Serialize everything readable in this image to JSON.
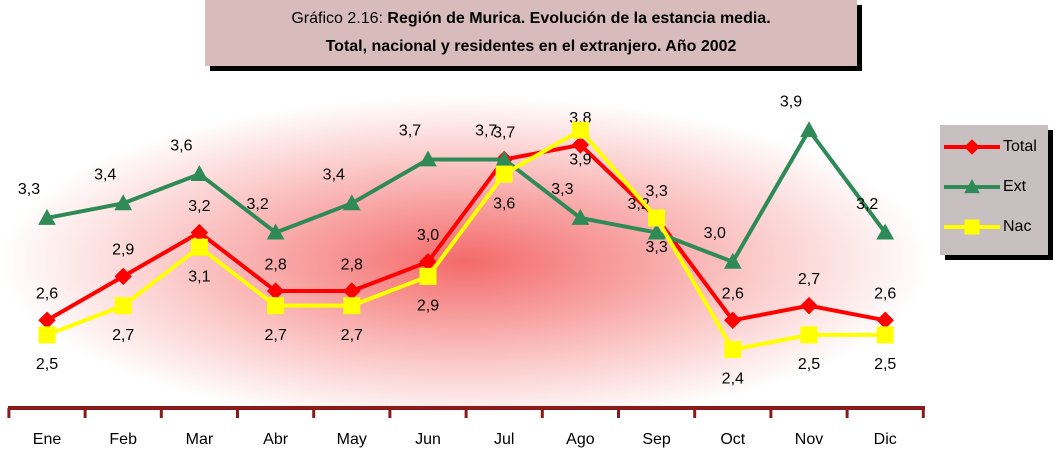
{
  "chart_data": {
    "type": "line",
    "title_prefix": "Gráfico 2.16:",
    "title": [
      "Región de Murica. Evolución de la estancia media.",
      "Total, nacional y residentes en el extranjero. Año 2002"
    ],
    "categories": [
      "Ene",
      "Feb",
      "Mar",
      "Abr",
      "May",
      "Jun",
      "Jul",
      "Ago",
      "Sep",
      "Oct",
      "Nov",
      "Dic"
    ],
    "series": [
      {
        "name": "Total",
        "color": "#ff0000",
        "marker": "diamond",
        "values": [
          2.6,
          2.9,
          3.2,
          2.8,
          2.8,
          3.0,
          3.7,
          3.8,
          3.3,
          2.6,
          2.7,
          2.6
        ],
        "value_labels": [
          "2,6",
          "2,9",
          "3,2",
          "2,8",
          "2,8",
          "3,0",
          "3,7",
          "3,8",
          "3,3",
          "2,6",
          "2,7",
          "2,6"
        ]
      },
      {
        "name": "Ext",
        "color": "#2e8b57",
        "marker": "triangle",
        "values": [
          3.3,
          3.4,
          3.6,
          3.2,
          3.4,
          3.7,
          3.7,
          3.3,
          3.2,
          3.0,
          3.9,
          3.2
        ],
        "value_labels": [
          "3,3",
          "3,4",
          "3,6",
          "3,2",
          "3,4",
          "3,7",
          "3,7",
          "3,3",
          "3,2",
          "3,0",
          "3,9",
          "3,2"
        ]
      },
      {
        "name": "Nac",
        "color": "#ffff00",
        "marker": "square",
        "values": [
          2.5,
          2.7,
          3.1,
          2.7,
          2.7,
          2.9,
          3.6,
          3.9,
          3.3,
          2.4,
          2.5,
          2.5
        ],
        "value_labels": [
          "2,5",
          "2,7",
          "3,1",
          "2,7",
          "2,7",
          "2,9",
          "3,6",
          "3,9",
          "3,3",
          "2,4",
          "2,5",
          "2,5"
        ]
      }
    ],
    "ylim": [
      2.0,
      4.1
    ],
    "legend": "right"
  }
}
